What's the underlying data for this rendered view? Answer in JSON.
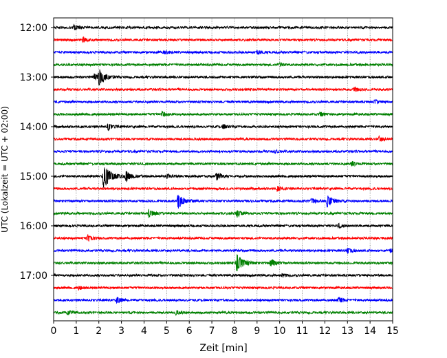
{
  "chart_data": {
    "type": "line",
    "title": "",
    "xlabel": "Zeit  [min]",
    "ylabel": "UTC (Lokalzeit = UTC + 02:00)",
    "xlim": [
      0,
      15
    ],
    "x_ticks": [
      "0",
      "1",
      "2",
      "3",
      "4",
      "5",
      "6",
      "7",
      "8",
      "9",
      "10",
      "11",
      "12",
      "13",
      "14",
      "15"
    ],
    "y_tick_labels": [
      "12:00",
      "13:00",
      "14:00",
      "15:00",
      "16:00",
      "17:00"
    ],
    "vertical_grid": true,
    "line_interval_min": 15,
    "trace_colors": [
      "#000000",
      "#ff0000",
      "#0000ff",
      "#008000"
    ],
    "traces": [
      {
        "start": "12:00",
        "events": [
          [
            0.9,
            0.5
          ]
        ]
      },
      {
        "start": "12:15",
        "events": [
          [
            1.3,
            0.4
          ]
        ]
      },
      {
        "start": "12:30",
        "events": [
          [
            4.9,
            0.3
          ],
          [
            9.0,
            0.3
          ]
        ]
      },
      {
        "start": "12:45",
        "events": [
          [
            10.0,
            0.3
          ]
        ]
      },
      {
        "start": "13:00",
        "events": [
          [
            2.0,
            1.4
          ],
          [
            1.8,
            0.6
          ]
        ]
      },
      {
        "start": "13:15",
        "events": [
          [
            13.3,
            0.4
          ]
        ]
      },
      {
        "start": "13:30",
        "events": [
          [
            14.2,
            0.3
          ]
        ]
      },
      {
        "start": "13:45",
        "events": [
          [
            4.8,
            0.5
          ],
          [
            11.8,
            0.3
          ]
        ]
      },
      {
        "start": "14:00",
        "events": [
          [
            2.4,
            0.6
          ],
          [
            7.5,
            0.4
          ]
        ]
      },
      {
        "start": "14:15",
        "events": [
          [
            14.4,
            0.4
          ]
        ]
      },
      {
        "start": "14:30",
        "events": [
          [
            9.8,
            0.2
          ]
        ]
      },
      {
        "start": "14:45",
        "events": [
          [
            13.2,
            0.4
          ]
        ]
      },
      {
        "start": "15:00",
        "events": [
          [
            2.2,
            2.2
          ],
          [
            3.2,
            0.9
          ],
          [
            7.2,
            0.7
          ],
          [
            5.0,
            0.3
          ]
        ]
      },
      {
        "start": "15:15",
        "events": [
          [
            9.9,
            0.4
          ]
        ]
      },
      {
        "start": "15:30",
        "events": [
          [
            5.5,
            1.3
          ],
          [
            12.1,
            1.2
          ],
          [
            11.4,
            0.5
          ]
        ]
      },
      {
        "start": "15:45",
        "events": [
          [
            4.2,
            0.7
          ],
          [
            8.1,
            0.6
          ]
        ]
      },
      {
        "start": "16:00",
        "events": [
          [
            12.6,
            0.3
          ]
        ]
      },
      {
        "start": "16:15",
        "events": [
          [
            1.5,
            0.6
          ]
        ]
      },
      {
        "start": "16:30",
        "events": [
          [
            13.0,
            0.5
          ],
          [
            14.9,
            0.3
          ]
        ]
      },
      {
        "start": "16:45",
        "events": [
          [
            8.1,
            1.6
          ],
          [
            9.6,
            0.8
          ]
        ]
      },
      {
        "start": "17:00",
        "events": [
          [
            10.1,
            0.3
          ]
        ]
      },
      {
        "start": "17:15",
        "events": [
          [
            1.1,
            0.3
          ]
        ]
      },
      {
        "start": "17:30",
        "events": [
          [
            2.8,
            0.5
          ],
          [
            12.6,
            0.5
          ]
        ]
      },
      {
        "start": "17:45",
        "events": [
          [
            0.6,
            0.4
          ],
          [
            5.4,
            0.3
          ]
        ]
      }
    ]
  }
}
